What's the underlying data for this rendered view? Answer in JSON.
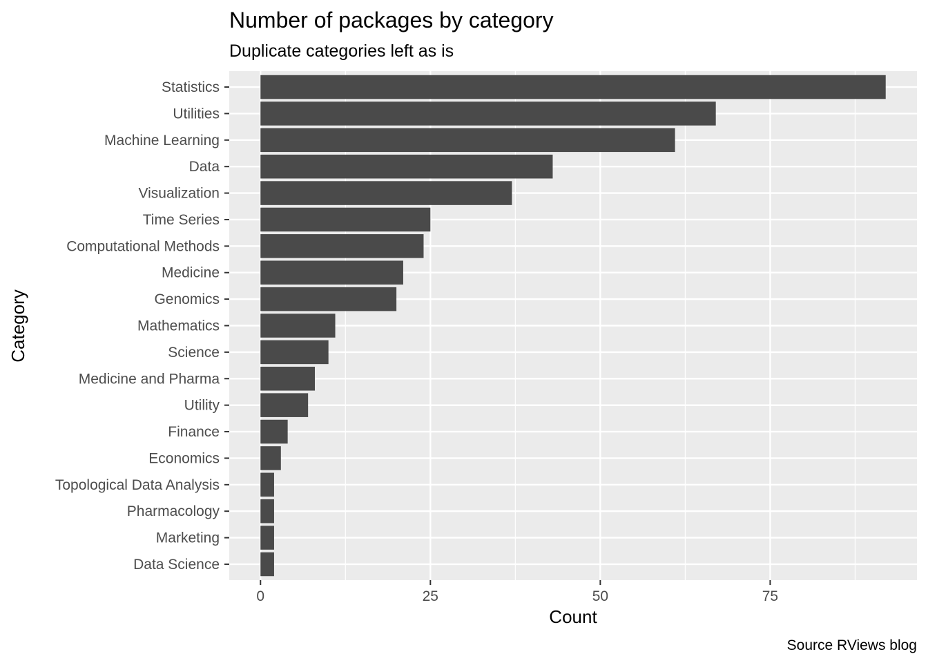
{
  "chart_data": {
    "type": "bar",
    "orientation": "horizontal",
    "title": "Number of packages by category",
    "subtitle": "Duplicate categories left as is",
    "xlabel": "Count",
    "ylabel": "Category",
    "caption": "Source RViews blog",
    "categories": [
      "Statistics",
      "Utilities",
      "Machine Learning",
      "Data",
      "Visualization",
      "Time Series",
      "Computational Methods",
      "Medicine",
      "Genomics",
      "Mathematics",
      "Science",
      "Medicine and Pharma",
      "Utility",
      "Finance",
      "Economics",
      "Topological Data Analysis",
      "Pharmacology",
      "Marketing",
      "Data Science"
    ],
    "values": [
      92,
      67,
      61,
      43,
      37,
      25,
      24,
      21,
      20,
      11,
      10,
      8,
      7,
      4,
      3,
      2,
      2,
      2,
      2
    ],
    "xlim": [
      -4.6,
      96.6
    ],
    "x_ticks": [
      0,
      25,
      50,
      75
    ],
    "x_tick_labels": [
      "0",
      "25",
      "50",
      "75"
    ],
    "grid": true,
    "colors": {
      "bar": "#4a4a4a",
      "panel": "#ebebeb",
      "grid": "#ffffff"
    }
  }
}
